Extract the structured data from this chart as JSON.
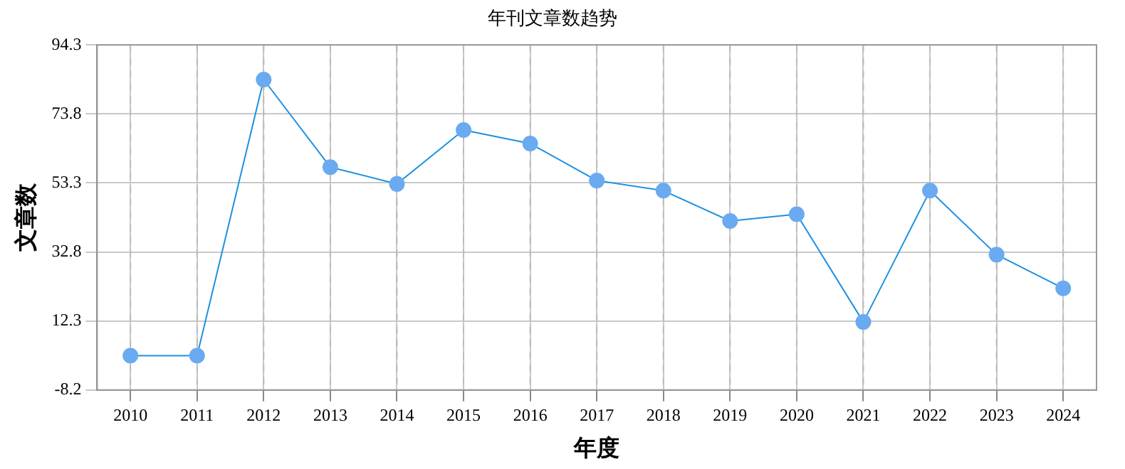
{
  "chart_data": {
    "type": "line",
    "title": "年刊文章数趋势",
    "xlabel": "年度",
    "ylabel": "文章数",
    "categories": [
      "2010",
      "2011",
      "2012",
      "2013",
      "2014",
      "2015",
      "2016",
      "2017",
      "2018",
      "2019",
      "2020",
      "2021",
      "2022",
      "2023",
      "2024"
    ],
    "series": [
      {
        "color": "#1e90e0",
        "values": [
          2,
          2,
          84,
          58,
          53,
          69,
          65,
          54,
          51,
          42,
          44,
          12,
          51,
          32,
          22
        ]
      }
    ],
    "ylim": [
      -8.2,
      94.3
    ],
    "yticks": [
      -8.2,
      12.3,
      32.8,
      53.3,
      73.8,
      94.3
    ],
    "grid": true,
    "legend": false,
    "marker": "circle",
    "line_style": "solid"
  }
}
